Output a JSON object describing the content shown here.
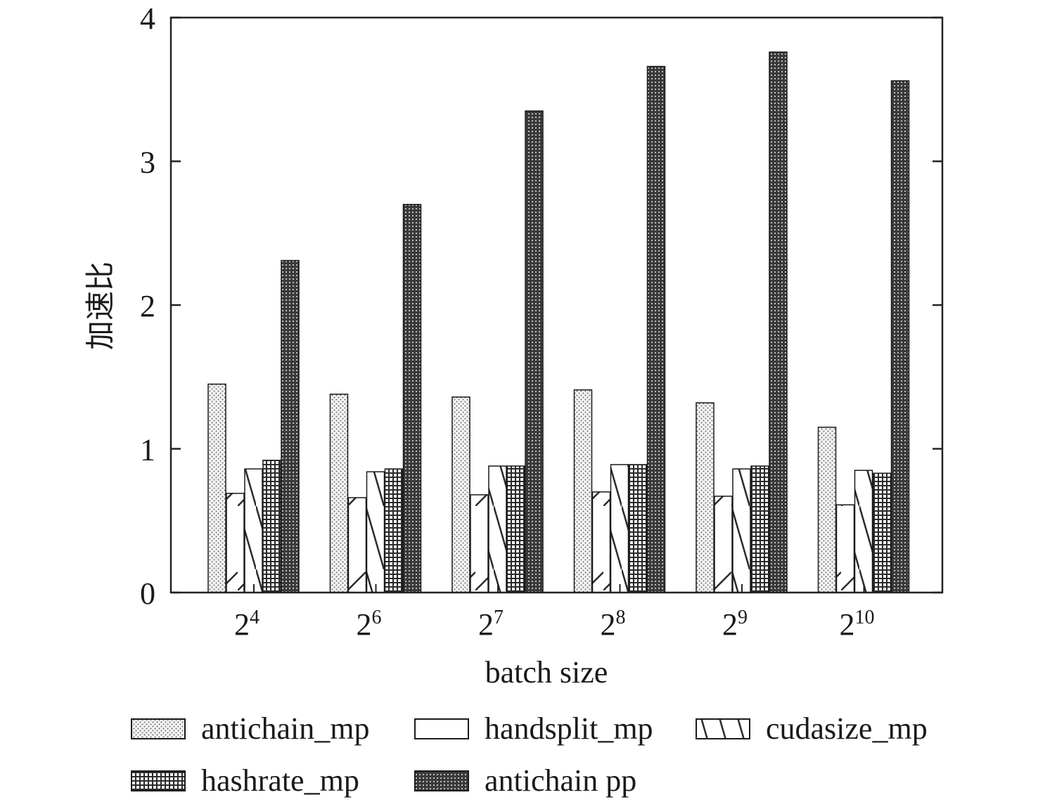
{
  "chart_data": {
    "type": "bar",
    "xlabel": "batch size",
    "ylabel": "加速比",
    "ylim": [
      0,
      4
    ],
    "yticks": [
      "0",
      "1",
      "2",
      "3",
      "4"
    ],
    "categories": [
      {
        "base": "2",
        "exp": "4"
      },
      {
        "base": "2",
        "exp": "6"
      },
      {
        "base": "2",
        "exp": "7"
      },
      {
        "base": "2",
        "exp": "8"
      },
      {
        "base": "2",
        "exp": "9"
      },
      {
        "base": "2",
        "exp": "10"
      }
    ],
    "series": [
      {
        "name": "antichain_mp",
        "pattern": "dots-light",
        "values": [
          1.45,
          1.38,
          1.36,
          1.41,
          1.32,
          1.15
        ]
      },
      {
        "name": "handsplit_mp",
        "pattern": "forward-slash",
        "values": [
          0.69,
          0.66,
          0.68,
          0.7,
          0.67,
          0.61
        ]
      },
      {
        "name": "cudasize_mp",
        "pattern": "back-slash",
        "values": [
          0.86,
          0.84,
          0.88,
          0.89,
          0.86,
          0.85
        ]
      },
      {
        "name": "hashrate_mp",
        "pattern": "grid",
        "values": [
          0.92,
          0.86,
          0.88,
          0.89,
          0.88,
          0.83
        ]
      },
      {
        "name": "antichain pp",
        "pattern": "dots-dark",
        "values": [
          2.31,
          2.7,
          3.35,
          3.66,
          3.76,
          3.56
        ]
      }
    ],
    "grid": false,
    "legend_placement": "bottom"
  }
}
